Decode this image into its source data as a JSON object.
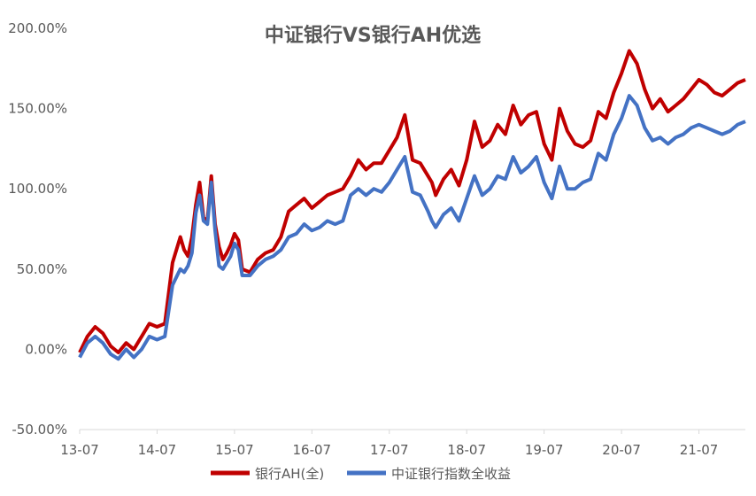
{
  "chart_data": {
    "type": "line",
    "title": "中证银行VS银行AH优选",
    "xlabel": "",
    "ylabel": "",
    "ylim": [
      -50,
      200
    ],
    "y_ticks": [
      "200.00%",
      "150.00%",
      "100.00%",
      "50.00%",
      "0.00%",
      "-50.00%"
    ],
    "y_tick_values": [
      200,
      150,
      100,
      50,
      0,
      -50
    ],
    "x_tick_labels": [
      "13-07",
      "14-07",
      "15-07",
      "16-07",
      "17-07",
      "18-07",
      "19-07",
      "20-07",
      "21-07"
    ],
    "x_range": [
      2013.5,
      2022.1
    ],
    "grid": false,
    "legend_position": "bottom",
    "x": [
      2013.5,
      2013.6,
      2013.7,
      2013.8,
      2013.9,
      2014.0,
      2014.1,
      2014.2,
      2014.3,
      2014.4,
      2014.5,
      2014.6,
      2014.7,
      2014.8,
      2014.85,
      2014.9,
      2014.95,
      2015.0,
      2015.05,
      2015.1,
      2015.15,
      2015.2,
      2015.25,
      2015.3,
      2015.35,
      2015.4,
      2015.45,
      2015.5,
      2015.55,
      2015.6,
      2015.7,
      2015.8,
      2015.9,
      2016.0,
      2016.1,
      2016.2,
      2016.3,
      2016.4,
      2016.5,
      2016.6,
      2016.7,
      2016.8,
      2016.9,
      2017.0,
      2017.1,
      2017.2,
      2017.3,
      2017.4,
      2017.5,
      2017.6,
      2017.7,
      2017.8,
      2017.9,
      2018.0,
      2018.05,
      2018.1,
      2018.2,
      2018.3,
      2018.4,
      2018.5,
      2018.6,
      2018.7,
      2018.8,
      2018.9,
      2019.0,
      2019.1,
      2019.2,
      2019.3,
      2019.4,
      2019.5,
      2019.6,
      2019.7,
      2019.8,
      2019.9,
      2020.0,
      2020.1,
      2020.2,
      2020.3,
      2020.4,
      2020.5,
      2020.6,
      2020.7,
      2020.8,
      2020.9,
      2021.0,
      2021.1,
      2021.2,
      2021.3,
      2021.4,
      2021.5,
      2021.6,
      2021.7,
      2021.8,
      2021.9,
      2022.0,
      2022.1
    ],
    "series": [
      {
        "name": "银行AH(全)",
        "color": "#C00000",
        "values": [
          -2,
          8,
          14,
          10,
          2,
          -2,
          4,
          0,
          8,
          16,
          14,
          16,
          54,
          70,
          62,
          58,
          70,
          90,
          104,
          82,
          80,
          108,
          78,
          64,
          56,
          60,
          65,
          72,
          68,
          50,
          48,
          56,
          60,
          62,
          70,
          86,
          90,
          94,
          88,
          92,
          96,
          98,
          100,
          108,
          118,
          112,
          116,
          116,
          124,
          132,
          146,
          118,
          116,
          108,
          104,
          96,
          106,
          112,
          102,
          118,
          142,
          126,
          130,
          140,
          134,
          152,
          140,
          146,
          148,
          128,
          118,
          150,
          136,
          128,
          126,
          130,
          148,
          144,
          160,
          172,
          186,
          178,
          162,
          150,
          156,
          148,
          152,
          156,
          162,
          168,
          165,
          160,
          158,
          162,
          166,
          168
        ]
      },
      {
        "name": "中证银行指数全收益",
        "color": "#4472C4",
        "values": [
          -5,
          4,
          8,
          4,
          -3,
          -6,
          0,
          -5,
          0,
          8,
          6,
          8,
          40,
          50,
          48,
          52,
          60,
          85,
          96,
          80,
          78,
          104,
          74,
          52,
          50,
          54,
          58,
          66,
          62,
          46,
          46,
          52,
          56,
          58,
          62,
          70,
          72,
          78,
          74,
          76,
          80,
          78,
          80,
          96,
          100,
          96,
          100,
          98,
          104,
          112,
          120,
          98,
          96,
          86,
          80,
          76,
          84,
          88,
          80,
          94,
          108,
          96,
          100,
          108,
          106,
          120,
          110,
          114,
          120,
          104,
          94,
          114,
          100,
          100,
          104,
          106,
          122,
          118,
          134,
          144,
          158,
          152,
          138,
          130,
          132,
          128,
          132,
          134,
          138,
          140,
          138,
          136,
          134,
          136,
          140,
          142
        ]
      }
    ]
  }
}
